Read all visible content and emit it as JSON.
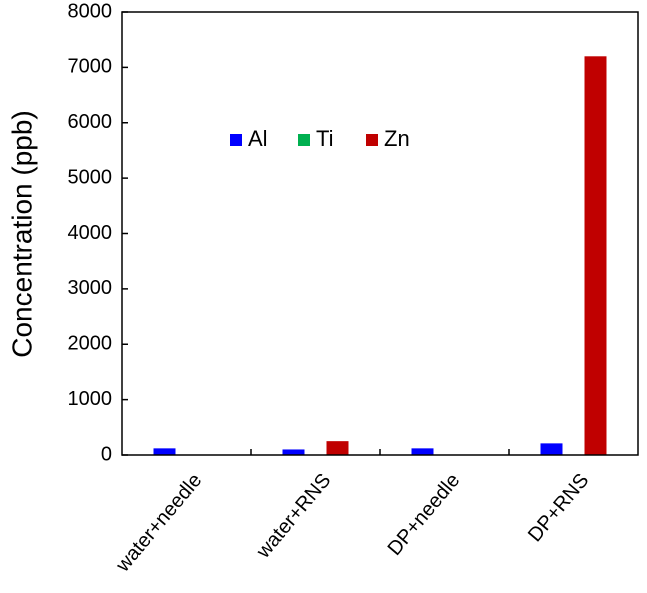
{
  "chart_data": {
    "type": "bar",
    "y_label": "Concentration (ppb)",
    "categories": [
      "water+needle",
      "water+RNS",
      "DP+needle",
      "DP+RNS"
    ],
    "series": [
      {
        "name": "Al",
        "color": "#0000ff",
        "values": [
          120,
          100,
          120,
          210
        ]
      },
      {
        "name": "Ti",
        "color": "#00b050",
        "values": [
          0,
          0,
          0,
          0
        ]
      },
      {
        "name": "Zn",
        "color": "#c00000",
        "values": [
          0,
          250,
          0,
          7200
        ]
      }
    ],
    "ylim": [
      0,
      8000
    ],
    "yticks": [
      0,
      1000,
      2000,
      3000,
      4000,
      5000,
      6000,
      7000,
      8000
    ]
  }
}
